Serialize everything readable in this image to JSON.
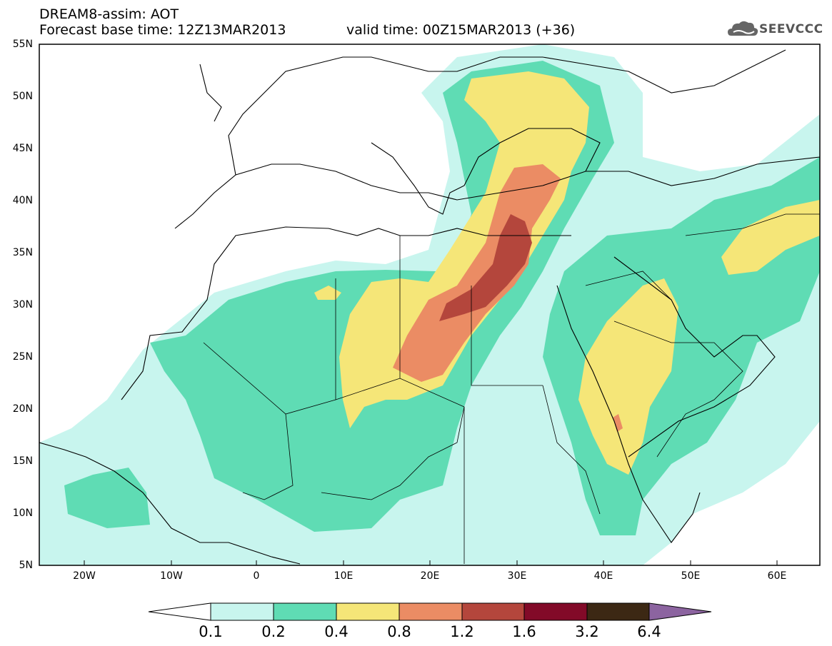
{
  "header": {
    "title": "DREAM8-assim: AOT",
    "base_time": "Forecast base time: 12Z13MAR2013",
    "valid_time": "valid time: 00Z15MAR2013 (+36)",
    "logo_text": "SEEVCCC"
  },
  "map": {
    "projection": "lat-lon",
    "lon_range": [
      -25,
      65
    ],
    "lat_range": [
      5,
      55
    ],
    "lat_labels": [
      "55N",
      "50N",
      "45N",
      "40N",
      "35N",
      "30N",
      "25N",
      "20N",
      "15N",
      "10N",
      "5N"
    ],
    "lon_labels": [
      "20W",
      "10W",
      "0",
      "10E",
      "20E",
      "30E",
      "40E",
      "50E",
      "60E"
    ],
    "field": "Aerosol optical thickness (dust)"
  },
  "colorbar": {
    "levels": [
      "0.1",
      "0.2",
      "0.4",
      "0.8",
      "1.2",
      "1.6",
      "3.2",
      "6.4"
    ],
    "colors": {
      "below": "#ffffff",
      "c1": "#c8f5ee",
      "c2": "#5fdcb4",
      "c3": "#f5e678",
      "c4": "#eb8c64",
      "c5": "#b4463c",
      "c6": "#820a28",
      "c7": "#3c2814",
      "above": "#8c64a0"
    }
  }
}
